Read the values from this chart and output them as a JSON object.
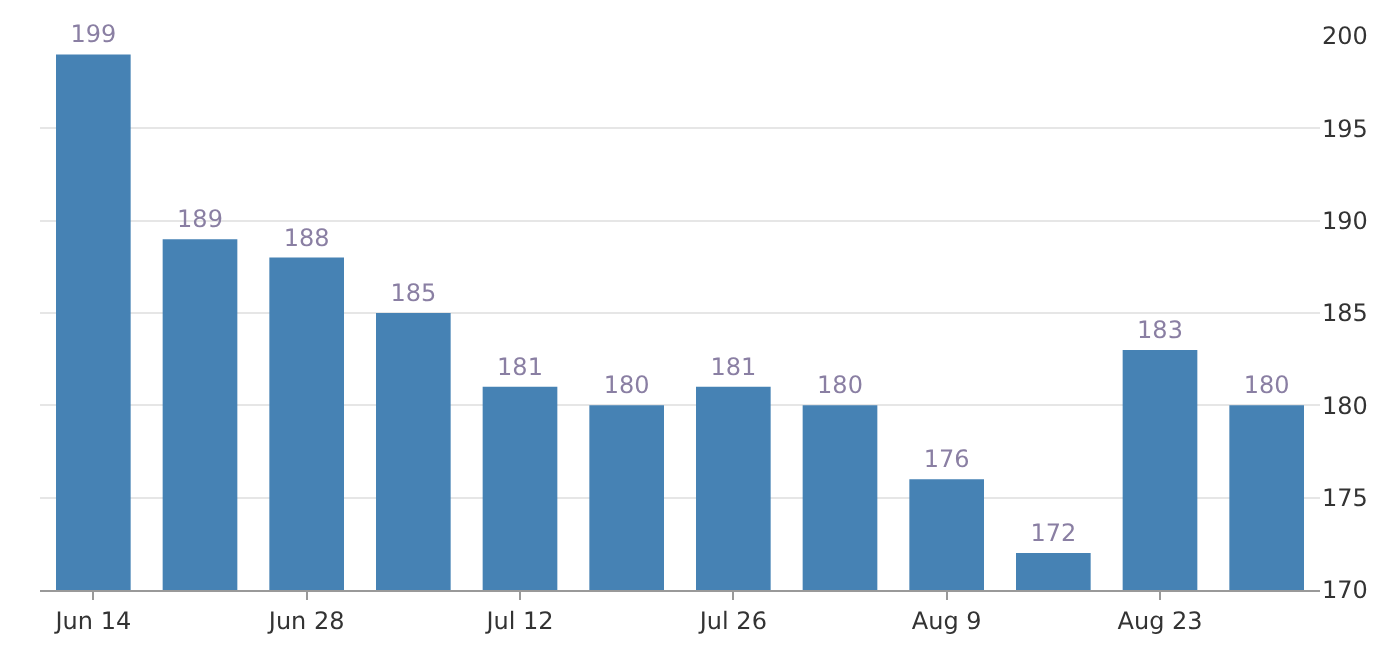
{
  "chart_data": {
    "type": "bar",
    "categories": [
      "Jun 14",
      null,
      "Jun 28",
      null,
      "Jul 12",
      null,
      "Jul 26",
      null,
      "Aug 9",
      null,
      "Aug 23",
      null
    ],
    "values": [
      199,
      189,
      188,
      185,
      181,
      180,
      181,
      180,
      176,
      172,
      183,
      180
    ],
    "color": "#4682b4",
    "ylim": [
      170,
      200
    ],
    "yticks": [
      170,
      175,
      180,
      185,
      190,
      195,
      200
    ],
    "grid": "y",
    "data_labels": true,
    "legend": false
  }
}
